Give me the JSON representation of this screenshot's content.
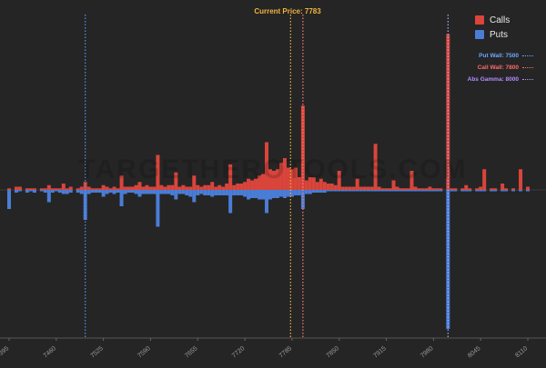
{
  "chart_data": {
    "type": "bar",
    "title": "",
    "current_price_label": "Current Price: 7783",
    "watermark": "TARGETHEROTOOLS.COM",
    "legend": [
      {
        "name": "Calls",
        "color": "#d9453b"
      },
      {
        "name": "Puts",
        "color": "#4a7dd6"
      }
    ],
    "wall_legend": [
      {
        "label": "Put Wall: 7500",
        "color": "#6fa6ff"
      },
      {
        "label": "Call Wall: 7800",
        "color": "#ff6b6b"
      },
      {
        "label": "Abs Gamma: 8000",
        "color": "#b58cff"
      }
    ],
    "x_ticks": [
      "7395",
      "7460",
      "7525",
      "7590",
      "7655",
      "7720",
      "7785",
      "7850",
      "7915",
      "7980",
      "8045",
      "8110"
    ],
    "x_range": [
      7390,
      8115
    ],
    "y_range": [
      -1.03,
      1.0
    ],
    "reference_lines": [
      {
        "label": "Put Wall",
        "x": 7500,
        "color": "#5b8fe8"
      },
      {
        "label": "Current Price",
        "x": 7783,
        "color": "#f2b33d"
      },
      {
        "label": "Call Wall",
        "x": 7800,
        "color": "#ff7a7a"
      },
      {
        "label": "Abs Gamma",
        "x": 8000,
        "color": "#9fb4ff"
      }
    ],
    "calls": [
      [
        7395,
        0.01
      ],
      [
        7405,
        0.02
      ],
      [
        7410,
        0.02
      ],
      [
        7420,
        0.01
      ],
      [
        7425,
        0.01
      ],
      [
        7430,
        0.01
      ],
      [
        7440,
        0.01
      ],
      [
        7445,
        0.01
      ],
      [
        7450,
        0.03
      ],
      [
        7455,
        0.01
      ],
      [
        7460,
        0.01
      ],
      [
        7465,
        0.01
      ],
      [
        7470,
        0.04
      ],
      [
        7475,
        0.01
      ],
      [
        7480,
        0.02
      ],
      [
        7490,
        0.01
      ],
      [
        7495,
        0.02
      ],
      [
        7500,
        0.05
      ],
      [
        7505,
        0.02
      ],
      [
        7510,
        0.01
      ],
      [
        7515,
        0.01
      ],
      [
        7520,
        0.01
      ],
      [
        7525,
        0.03
      ],
      [
        7530,
        0.02
      ],
      [
        7535,
        0.01
      ],
      [
        7540,
        0.02
      ],
      [
        7545,
        0.01
      ],
      [
        7550,
        0.09
      ],
      [
        7555,
        0.02
      ],
      [
        7560,
        0.02
      ],
      [
        7565,
        0.02
      ],
      [
        7570,
        0.03
      ],
      [
        7575,
        0.05
      ],
      [
        7580,
        0.02
      ],
      [
        7585,
        0.03
      ],
      [
        7590,
        0.02
      ],
      [
        7595,
        0.02
      ],
      [
        7600,
        0.22
      ],
      [
        7605,
        0.03
      ],
      [
        7610,
        0.02
      ],
      [
        7615,
        0.03
      ],
      [
        7620,
        0.03
      ],
      [
        7625,
        0.11
      ],
      [
        7630,
        0.02
      ],
      [
        7635,
        0.03
      ],
      [
        7640,
        0.02
      ],
      [
        7645,
        0.02
      ],
      [
        7650,
        0.09
      ],
      [
        7655,
        0.03
      ],
      [
        7660,
        0.02
      ],
      [
        7665,
        0.03
      ],
      [
        7670,
        0.03
      ],
      [
        7675,
        0.05
      ],
      [
        7680,
        0.02
      ],
      [
        7685,
        0.03
      ],
      [
        7690,
        0.02
      ],
      [
        7695,
        0.04
      ],
      [
        7700,
        0.16
      ],
      [
        7705,
        0.03
      ],
      [
        7710,
        0.04
      ],
      [
        7715,
        0.04
      ],
      [
        7720,
        0.05
      ],
      [
        7725,
        0.07
      ],
      [
        7730,
        0.06
      ],
      [
        7735,
        0.07
      ],
      [
        7740,
        0.09
      ],
      [
        7745,
        0.1
      ],
      [
        7750,
        0.3
      ],
      [
        7755,
        0.13
      ],
      [
        7760,
        0.12
      ],
      [
        7765,
        0.13
      ],
      [
        7770,
        0.17
      ],
      [
        7775,
        0.2
      ],
      [
        7780,
        0.14
      ],
      [
        7785,
        0.13
      ],
      [
        7790,
        0.14
      ],
      [
        7795,
        0.08
      ],
      [
        7800,
        0.53
      ],
      [
        7805,
        0.06
      ],
      [
        7810,
        0.08
      ],
      [
        7815,
        0.08
      ],
      [
        7820,
        0.05
      ],
      [
        7825,
        0.07
      ],
      [
        7830,
        0.05
      ],
      [
        7835,
        0.04
      ],
      [
        7840,
        0.04
      ],
      [
        7845,
        0.03
      ],
      [
        7850,
        0.12
      ],
      [
        7855,
        0.02
      ],
      [
        7860,
        0.02
      ],
      [
        7865,
        0.02
      ],
      [
        7870,
        0.02
      ],
      [
        7875,
        0.07
      ],
      [
        7880,
        0.02
      ],
      [
        7885,
        0.02
      ],
      [
        7890,
        0.02
      ],
      [
        7895,
        0.02
      ],
      [
        7900,
        0.29
      ],
      [
        7905,
        0.02
      ],
      [
        7910,
        0.01
      ],
      [
        7915,
        0.01
      ],
      [
        7920,
        0.01
      ],
      [
        7925,
        0.06
      ],
      [
        7930,
        0.02
      ],
      [
        7935,
        0.01
      ],
      [
        7940,
        0.01
      ],
      [
        7945,
        0.01
      ],
      [
        7950,
        0.12
      ],
      [
        7955,
        0.02
      ],
      [
        7960,
        0.01
      ],
      [
        7965,
        0.01
      ],
      [
        7970,
        0.01
      ],
      [
        7975,
        0.02
      ],
      [
        7980,
        0.01
      ],
      [
        7985,
        0.01
      ],
      [
        7990,
        0.01
      ],
      [
        8000,
        0.98
      ],
      [
        8005,
        0.01
      ],
      [
        8010,
        0.01
      ],
      [
        8020,
        0.01
      ],
      [
        8025,
        0.03
      ],
      [
        8030,
        0.01
      ],
      [
        8040,
        0.01
      ],
      [
        8045,
        0.02
      ],
      [
        8050,
        0.13
      ],
      [
        8060,
        0.01
      ],
      [
        8065,
        0.01
      ],
      [
        8075,
        0.04
      ],
      [
        8080,
        0.01
      ],
      [
        8090,
        0.01
      ],
      [
        8100,
        0.13
      ],
      [
        8110,
        0.02
      ]
    ],
    "puts": [
      [
        7395,
        -0.14
      ],
      [
        7405,
        -0.02
      ],
      [
        7410,
        -0.01
      ],
      [
        7420,
        -0.02
      ],
      [
        7425,
        -0.01
      ],
      [
        7430,
        -0.02
      ],
      [
        7440,
        -0.01
      ],
      [
        7445,
        -0.02
      ],
      [
        7450,
        -0.09
      ],
      [
        7455,
        -0.02
      ],
      [
        7460,
        -0.01
      ],
      [
        7465,
        -0.02
      ],
      [
        7470,
        -0.03
      ],
      [
        7475,
        -0.03
      ],
      [
        7480,
        -0.02
      ],
      [
        7490,
        -0.02
      ],
      [
        7495,
        -0.03
      ],
      [
        7500,
        -0.22
      ],
      [
        7505,
        -0.03
      ],
      [
        7510,
        -0.02
      ],
      [
        7515,
        -0.02
      ],
      [
        7520,
        -0.02
      ],
      [
        7525,
        -0.05
      ],
      [
        7530,
        -0.03
      ],
      [
        7535,
        -0.02
      ],
      [
        7540,
        -0.03
      ],
      [
        7545,
        -0.02
      ],
      [
        7550,
        -0.12
      ],
      [
        7555,
        -0.03
      ],
      [
        7560,
        -0.02
      ],
      [
        7565,
        -0.02
      ],
      [
        7570,
        -0.03
      ],
      [
        7575,
        -0.05
      ],
      [
        7580,
        -0.03
      ],
      [
        7585,
        -0.03
      ],
      [
        7590,
        -0.03
      ],
      [
        7595,
        -0.03
      ],
      [
        7600,
        -0.27
      ],
      [
        7605,
        -0.03
      ],
      [
        7610,
        -0.03
      ],
      [
        7615,
        -0.03
      ],
      [
        7620,
        -0.04
      ],
      [
        7625,
        -0.07
      ],
      [
        7630,
        -0.03
      ],
      [
        7635,
        -0.03
      ],
      [
        7640,
        -0.04
      ],
      [
        7645,
        -0.05
      ],
      [
        7650,
        -0.09
      ],
      [
        7655,
        -0.04
      ],
      [
        7660,
        -0.03
      ],
      [
        7665,
        -0.04
      ],
      [
        7670,
        -0.04
      ],
      [
        7675,
        -0.05
      ],
      [
        7680,
        -0.04
      ],
      [
        7685,
        -0.04
      ],
      [
        7690,
        -0.04
      ],
      [
        7695,
        -0.04
      ],
      [
        7700,
        -0.17
      ],
      [
        7705,
        -0.04
      ],
      [
        7710,
        -0.04
      ],
      [
        7715,
        -0.04
      ],
      [
        7720,
        -0.05
      ],
      [
        7725,
        -0.07
      ],
      [
        7730,
        -0.06
      ],
      [
        7735,
        -0.06
      ],
      [
        7740,
        -0.07
      ],
      [
        7745,
        -0.07
      ],
      [
        7750,
        -0.17
      ],
      [
        7755,
        -0.07
      ],
      [
        7760,
        -0.06
      ],
      [
        7765,
        -0.06
      ],
      [
        7770,
        -0.05
      ],
      [
        7775,
        -0.06
      ],
      [
        7780,
        -0.05
      ],
      [
        7785,
        -0.05
      ],
      [
        7790,
        -0.04
      ],
      [
        7795,
        -0.04
      ],
      [
        7800,
        -0.14
      ],
      [
        7805,
        -0.03
      ],
      [
        7810,
        -0.03
      ],
      [
        7815,
        -0.02
      ],
      [
        7820,
        -0.02
      ],
      [
        7825,
        -0.02
      ],
      [
        7830,
        -0.02
      ],
      [
        7835,
        -0.01
      ],
      [
        7840,
        -0.01
      ],
      [
        7845,
        -0.01
      ],
      [
        7850,
        -0.01
      ],
      [
        7855,
        -0.01
      ],
      [
        7860,
        -0.01
      ],
      [
        7865,
        -0.01
      ],
      [
        7870,
        -0.01
      ],
      [
        7875,
        -0.01
      ],
      [
        7880,
        -0.01
      ],
      [
        7885,
        -0.01
      ],
      [
        7890,
        -0.01
      ],
      [
        7895,
        -0.01
      ],
      [
        7900,
        -0.01
      ],
      [
        7905,
        -0.01
      ],
      [
        7910,
        -0.01
      ],
      [
        7915,
        -0.01
      ],
      [
        7920,
        -0.01
      ],
      [
        7925,
        -0.01
      ],
      [
        7930,
        -0.01
      ],
      [
        7935,
        -0.01
      ],
      [
        7940,
        -0.01
      ],
      [
        7945,
        -0.01
      ],
      [
        7950,
        -0.01
      ],
      [
        7955,
        -0.01
      ],
      [
        7960,
        -0.01
      ],
      [
        7965,
        -0.01
      ],
      [
        7970,
        -0.01
      ],
      [
        7975,
        -0.01
      ],
      [
        7980,
        -0.01
      ],
      [
        7985,
        -0.01
      ],
      [
        7990,
        -0.01
      ],
      [
        8000,
        -1.02
      ],
      [
        8005,
        -0.01
      ],
      [
        8010,
        -0.01
      ],
      [
        8020,
        -0.01
      ],
      [
        8025,
        -0.01
      ],
      [
        8030,
        -0.01
      ],
      [
        8040,
        -0.01
      ],
      [
        8045,
        -0.01
      ],
      [
        8050,
        -0.01
      ],
      [
        8060,
        -0.01
      ],
      [
        8065,
        -0.01
      ],
      [
        8075,
        -0.01
      ],
      [
        8080,
        -0.01
      ],
      [
        8090,
        -0.01
      ],
      [
        8100,
        -0.01
      ],
      [
        8110,
        -0.01
      ]
    ]
  }
}
